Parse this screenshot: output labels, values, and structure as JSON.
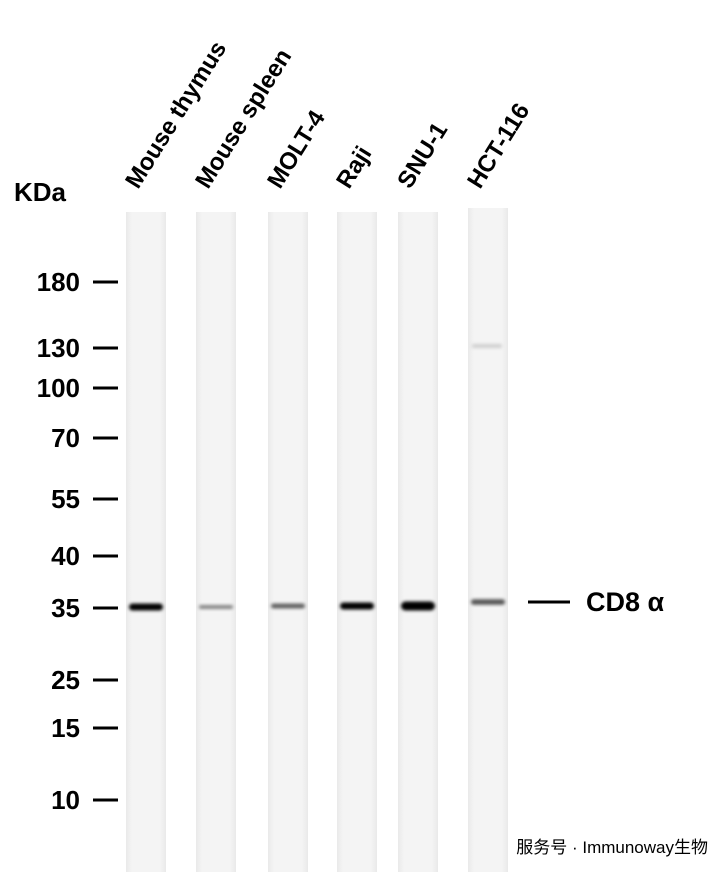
{
  "kda_label": "KDa",
  "lanes": [
    "Mouse thymus",
    "Mouse spleen",
    "MOLT-4",
    "Raji",
    "SNU-1",
    "HCT-116"
  ],
  "markers": [
    180,
    130,
    100,
    70,
    55,
    40,
    35,
    25,
    15,
    10
  ],
  "band_label": "CD8 α",
  "watermark": "服务号 · Immunoway生物"
}
